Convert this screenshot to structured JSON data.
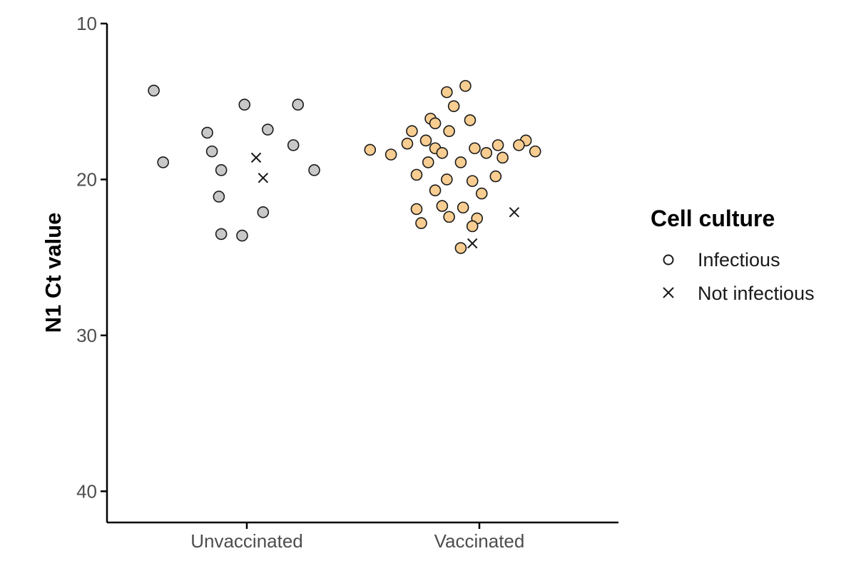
{
  "chart_data": {
    "type": "scatter",
    "title": "",
    "xlabel": "",
    "ylabel": "N1 Ct value",
    "ylim": [
      42,
      10
    ],
    "y_reversed": true,
    "yticks": [
      10,
      20,
      30,
      40
    ],
    "ytick_labels": [
      "10",
      "20",
      "30",
      "40"
    ],
    "categories": [
      "Unvaccinated",
      "Vaccinated"
    ],
    "grid": false,
    "legend": {
      "title": "Cell culture",
      "position": "right",
      "entries": [
        {
          "label": "Infectious",
          "marker": "circle"
        },
        {
          "label": "Not infectious",
          "marker": "cross"
        }
      ]
    },
    "colors": {
      "Unvaccinated": "#c8c8c8",
      "Vaccinated": "#f7cd91",
      "marker_edge": "#1a1a1a",
      "axis": "#000000"
    },
    "series": [
      {
        "category": "Unvaccinated",
        "points": [
          {
            "x": -0.4,
            "y": 14.3,
            "culture": "Infectious"
          },
          {
            "x": -0.01,
            "y": 15.2,
            "culture": "Infectious"
          },
          {
            "x": 0.22,
            "y": 15.2,
            "culture": "Infectious"
          },
          {
            "x": -0.17,
            "y": 17.0,
            "culture": "Infectious"
          },
          {
            "x": 0.09,
            "y": 16.8,
            "culture": "Infectious"
          },
          {
            "x": -0.15,
            "y": 18.2,
            "culture": "Infectious"
          },
          {
            "x": 0.2,
            "y": 17.8,
            "culture": "Infectious"
          },
          {
            "x": -0.36,
            "y": 18.9,
            "culture": "Infectious"
          },
          {
            "x": -0.11,
            "y": 19.4,
            "culture": "Infectious"
          },
          {
            "x": 0.29,
            "y": 19.4,
            "culture": "Infectious"
          },
          {
            "x": -0.12,
            "y": 21.1,
            "culture": "Infectious"
          },
          {
            "x": 0.07,
            "y": 22.1,
            "culture": "Infectious"
          },
          {
            "x": -0.11,
            "y": 23.5,
            "culture": "Infectious"
          },
          {
            "x": -0.02,
            "y": 23.6,
            "culture": "Infectious"
          },
          {
            "x": 0.04,
            "y": 18.6,
            "culture": "Not infectious"
          },
          {
            "x": 0.07,
            "y": 19.9,
            "culture": "Not infectious"
          }
        ]
      },
      {
        "category": "Vaccinated",
        "points": [
          {
            "x": 0.86,
            "y": 14.4,
            "culture": "Infectious"
          },
          {
            "x": 0.94,
            "y": 14.0,
            "culture": "Infectious"
          },
          {
            "x": 0.89,
            "y": 15.3,
            "culture": "Infectious"
          },
          {
            "x": 0.79,
            "y": 16.1,
            "culture": "Infectious"
          },
          {
            "x": 0.81,
            "y": 16.4,
            "culture": "Infectious"
          },
          {
            "x": 0.96,
            "y": 16.2,
            "culture": "Infectious"
          },
          {
            "x": 0.71,
            "y": 16.9,
            "culture": "Infectious"
          },
          {
            "x": 0.87,
            "y": 16.9,
            "culture": "Infectious"
          },
          {
            "x": 0.77,
            "y": 17.5,
            "culture": "Infectious"
          },
          {
            "x": 0.69,
            "y": 17.7,
            "culture": "Infectious"
          },
          {
            "x": 1.2,
            "y": 17.5,
            "culture": "Infectious"
          },
          {
            "x": 1.17,
            "y": 17.8,
            "culture": "Infectious"
          },
          {
            "x": 0.53,
            "y": 18.1,
            "culture": "Infectious"
          },
          {
            "x": 0.62,
            "y": 18.4,
            "culture": "Infectious"
          },
          {
            "x": 0.81,
            "y": 18.0,
            "culture": "Infectious"
          },
          {
            "x": 0.84,
            "y": 18.3,
            "culture": "Infectious"
          },
          {
            "x": 0.98,
            "y": 18.0,
            "culture": "Infectious"
          },
          {
            "x": 1.03,
            "y": 18.3,
            "culture": "Infectious"
          },
          {
            "x": 1.08,
            "y": 17.8,
            "culture": "Infectious"
          },
          {
            "x": 1.1,
            "y": 18.6,
            "culture": "Infectious"
          },
          {
            "x": 1.24,
            "y": 18.2,
            "culture": "Infectious"
          },
          {
            "x": 0.78,
            "y": 18.9,
            "culture": "Infectious"
          },
          {
            "x": 0.92,
            "y": 18.9,
            "culture": "Infectious"
          },
          {
            "x": 0.73,
            "y": 19.7,
            "culture": "Infectious"
          },
          {
            "x": 0.86,
            "y": 20.0,
            "culture": "Infectious"
          },
          {
            "x": 0.97,
            "y": 20.1,
            "culture": "Infectious"
          },
          {
            "x": 1.07,
            "y": 19.8,
            "culture": "Infectious"
          },
          {
            "x": 0.81,
            "y": 20.7,
            "culture": "Infectious"
          },
          {
            "x": 1.01,
            "y": 20.9,
            "culture": "Infectious"
          },
          {
            "x": 0.73,
            "y": 21.9,
            "culture": "Infectious"
          },
          {
            "x": 0.84,
            "y": 21.7,
            "culture": "Infectious"
          },
          {
            "x": 0.93,
            "y": 21.8,
            "culture": "Infectious"
          },
          {
            "x": 0.87,
            "y": 22.4,
            "culture": "Infectious"
          },
          {
            "x": 0.99,
            "y": 22.5,
            "culture": "Infectious"
          },
          {
            "x": 0.75,
            "y": 22.8,
            "culture": "Infectious"
          },
          {
            "x": 0.97,
            "y": 23.0,
            "culture": "Infectious"
          },
          {
            "x": 0.92,
            "y": 24.4,
            "culture": "Infectious"
          },
          {
            "x": 0.97,
            "y": 24.1,
            "culture": "Not infectious"
          },
          {
            "x": 1.15,
            "y": 22.1,
            "culture": "Not infectious"
          }
        ]
      }
    ]
  }
}
